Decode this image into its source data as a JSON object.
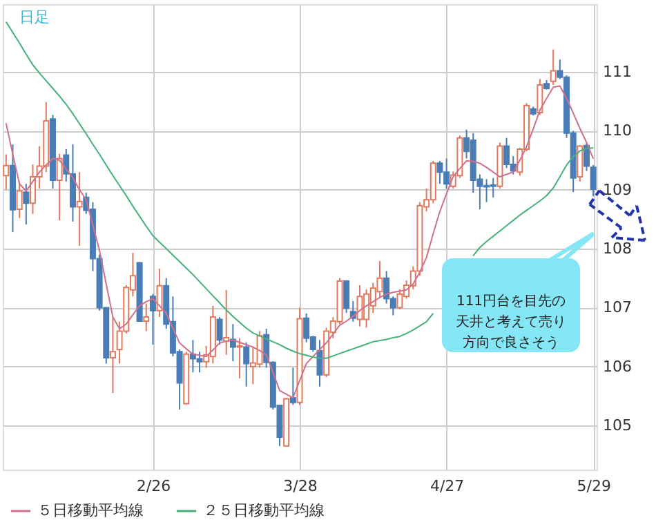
{
  "chart_data": {
    "type": "candlestick",
    "title": "日足",
    "categories": [
      null,
      null,
      null,
      null,
      null,
      null,
      null,
      null,
      null,
      null,
      null,
      null,
      null,
      null,
      null,
      null,
      null,
      null,
      null,
      null,
      null,
      null,
      "2/26",
      null,
      null,
      null,
      null,
      null,
      null,
      null,
      null,
      null,
      null,
      null,
      null,
      null,
      null,
      null,
      null,
      null,
      null,
      null,
      null,
      null,
      "3/28",
      null,
      null,
      null,
      null,
      null,
      null,
      null,
      null,
      null,
      null,
      null,
      null,
      null,
      null,
      null,
      null,
      null,
      null,
      null,
      null,
      null,
      "4/27",
      null,
      null,
      null,
      null,
      null,
      null,
      null,
      null,
      null,
      null,
      null,
      null,
      null,
      null,
      null,
      null,
      null,
      null,
      null,
      null,
      null,
      "5/29"
    ],
    "ohlc": [
      [
        109.24,
        109.6,
        109.0,
        109.41
      ],
      [
        109.41,
        109.77,
        108.28,
        108.66
      ],
      [
        108.67,
        109.14,
        108.52,
        108.98
      ],
      [
        108.96,
        109.1,
        108.41,
        108.77
      ],
      [
        108.77,
        109.43,
        108.59,
        109.22
      ],
      [
        109.22,
        109.74,
        109.02,
        109.4
      ],
      [
        109.4,
        110.49,
        109.3,
        110.17
      ],
      [
        110.2,
        110.27,
        109.02,
        109.16
      ],
      [
        109.16,
        109.61,
        108.48,
        109.53
      ],
      [
        109.59,
        109.69,
        109.14,
        109.27
      ],
      [
        109.27,
        109.77,
        108.46,
        108.71
      ],
      [
        108.71,
        109.3,
        108.05,
        108.8
      ],
      [
        108.87,
        108.95,
        108.59,
        108.65
      ],
      [
        108.67,
        108.79,
        107.62,
        107.83
      ],
      [
        107.83,
        107.9,
        106.95,
        107.0
      ],
      [
        107.0,
        107.0,
        106.05,
        106.15
      ],
      [
        106.15,
        106.84,
        105.55,
        106.25
      ],
      [
        106.29,
        106.76,
        106.05,
        106.6
      ],
      [
        106.6,
        107.38,
        106.56,
        107.34
      ],
      [
        107.3,
        107.93,
        107.19,
        107.54
      ],
      [
        107.76,
        107.77,
        106.76,
        106.77
      ],
      [
        106.77,
        107.07,
        106.6,
        106.84
      ],
      [
        107.19,
        107.23,
        106.37,
        106.95
      ],
      [
        106.95,
        107.66,
        106.84,
        107.37
      ],
      [
        107.37,
        107.5,
        106.64,
        106.72
      ],
      [
        106.76,
        107.19,
        106.17,
        106.23
      ],
      [
        106.25,
        106.29,
        105.27,
        105.72
      ],
      [
        105.37,
        106.25,
        105.35,
        106.21
      ],
      [
        106.21,
        106.45,
        105.9,
        106.13
      ],
      [
        106.13,
        106.25,
        105.9,
        106.08
      ],
      [
        106.08,
        106.35,
        105.98,
        106.2
      ],
      [
        106.17,
        107.03,
        106.05,
        106.84
      ],
      [
        106.8,
        106.84,
        106.37,
        106.45
      ],
      [
        106.43,
        107.3,
        106.2,
        106.49
      ],
      [
        106.46,
        106.72,
        106.09,
        106.33
      ],
      [
        106.33,
        106.48,
        105.8,
        106.35
      ],
      [
        106.33,
        106.41,
        105.66,
        106.05
      ],
      [
        106.0,
        106.33,
        105.7,
        106.06
      ],
      [
        106.04,
        106.6,
        105.98,
        106.52
      ],
      [
        106.54,
        106.64,
        105.98,
        106.07
      ],
      [
        106.07,
        106.09,
        105.27,
        105.31
      ],
      [
        105.34,
        105.35,
        104.65,
        104.8
      ],
      [
        104.65,
        105.47,
        104.65,
        105.45
      ],
      [
        105.47,
        105.98,
        105.35,
        105.39
      ],
      [
        105.39,
        107.0,
        105.35,
        106.81
      ],
      [
        106.82,
        106.9,
        106.41,
        106.48
      ],
      [
        106.5,
        106.52,
        106.25,
        106.29
      ],
      [
        106.27,
        106.45,
        105.66,
        105.86
      ],
      [
        105.86,
        106.66,
        105.82,
        106.6
      ],
      [
        106.58,
        106.84,
        106.48,
        106.77
      ],
      [
        106.76,
        107.5,
        106.72,
        107.45
      ],
      [
        107.45,
        107.46,
        106.91,
        106.99
      ],
      [
        106.93,
        107.11,
        106.76,
        106.82
      ],
      [
        106.8,
        107.38,
        106.68,
        107.19
      ],
      [
        106.8,
        107.31,
        106.66,
        107.23
      ],
      [
        107.03,
        107.42,
        106.91,
        107.33
      ],
      [
        107.27,
        107.79,
        107.17,
        107.5
      ],
      [
        107.5,
        107.62,
        107.07,
        107.15
      ],
      [
        107.15,
        107.19,
        106.87,
        107.0
      ],
      [
        107.0,
        107.31,
        106.97,
        107.23
      ],
      [
        107.19,
        107.46,
        107.15,
        107.38
      ],
      [
        107.37,
        107.7,
        107.31,
        107.62
      ],
      [
        107.62,
        108.79,
        107.54,
        108.73
      ],
      [
        108.71,
        109.02,
        108.63,
        108.83
      ],
      [
        108.83,
        109.49,
        108.77,
        109.45
      ],
      [
        109.45,
        109.49,
        109.1,
        109.3
      ],
      [
        109.3,
        109.53,
        109.02,
        109.1
      ],
      [
        109.06,
        109.31,
        109.02,
        109.25
      ],
      [
        109.24,
        109.92,
        109.2,
        109.88
      ],
      [
        109.88,
        110.02,
        109.53,
        109.65
      ],
      [
        109.84,
        109.96,
        108.95,
        109.16
      ],
      [
        109.18,
        109.26,
        108.67,
        109.06
      ],
      [
        109.07,
        109.18,
        108.79,
        109.05
      ],
      [
        109.08,
        109.2,
        108.87,
        109.06
      ],
      [
        109.06,
        109.8,
        109.02,
        109.74
      ],
      [
        109.74,
        109.88,
        109.37,
        109.43
      ],
      [
        109.43,
        109.57,
        109.26,
        109.32
      ],
      [
        109.3,
        109.71,
        109.24,
        109.69
      ],
      [
        109.69,
        110.47,
        109.65,
        110.43
      ],
      [
        110.37,
        110.41,
        110.26,
        110.29
      ],
      [
        110.31,
        110.88,
        110.27,
        110.78
      ],
      [
        110.8,
        110.86,
        110.7,
        110.72
      ],
      [
        110.84,
        111.38,
        110.78,
        111.02
      ],
      [
        111.02,
        111.21,
        110.88,
        110.91
      ],
      [
        110.91,
        110.94,
        109.88,
        109.96
      ],
      [
        109.96,
        110.0,
        108.96,
        109.2
      ],
      [
        109.22,
        109.76,
        109.14,
        109.74
      ],
      [
        109.75,
        109.79,
        109.32,
        109.4
      ],
      [
        109.38,
        109.42,
        108.89,
        109.01
      ]
    ],
    "series": [
      {
        "name": "５日移動平均線",
        "type": "line",
        "color": "#d0708a",
        "values": [
          110.13,
          109.6,
          109.1,
          108.98,
          109.14,
          109.3,
          109.42,
          109.53,
          109.5,
          109.35,
          109.2,
          109.0,
          108.83,
          108.4,
          107.97,
          107.4,
          106.84,
          106.64,
          106.72,
          106.88,
          107.03,
          107.1,
          107.15,
          107.03,
          106.9,
          106.65,
          106.4,
          106.3,
          106.21,
          106.19,
          106.17,
          106.28,
          106.4,
          106.43,
          106.45,
          106.41,
          106.37,
          106.33,
          106.27,
          106.2,
          105.9,
          105.59,
          105.53,
          105.47,
          105.76,
          106.05,
          106.17,
          106.29,
          106.4,
          106.55,
          106.7,
          106.77,
          106.85,
          106.95,
          107.03,
          107.1,
          107.17,
          107.23,
          107.26,
          107.28,
          107.3,
          107.4,
          107.6,
          107.85,
          108.25,
          108.63,
          108.93,
          109.22,
          109.36,
          109.49,
          109.48,
          109.45,
          109.38,
          109.3,
          109.22,
          109.26,
          109.3,
          109.5,
          109.73,
          110.03,
          110.35,
          110.55,
          110.74,
          110.76,
          110.55,
          110.3,
          110.04,
          109.8,
          109.53
        ]
      },
      {
        "name": "２５日移動平均線",
        "type": "line",
        "color": "#45b07a",
        "values": [
          111.85,
          111.67,
          111.49,
          111.3,
          111.12,
          110.98,
          110.85,
          110.72,
          110.59,
          110.45,
          110.29,
          110.12,
          109.95,
          109.77,
          109.6,
          109.42,
          109.24,
          109.07,
          108.9,
          108.72,
          108.55,
          108.38,
          108.22,
          108.11,
          108.0,
          107.89,
          107.78,
          107.67,
          107.56,
          107.44,
          107.32,
          107.2,
          107.08,
          106.96,
          106.85,
          106.75,
          106.65,
          106.57,
          106.52,
          106.47,
          106.42,
          106.37,
          106.31,
          106.26,
          106.22,
          106.19,
          106.16,
          106.14,
          106.14,
          106.18,
          106.22,
          106.26,
          106.3,
          106.34,
          106.38,
          106.42,
          106.44,
          106.46,
          106.49,
          106.51,
          106.56,
          106.62,
          106.69,
          106.76,
          106.9,
          null,
          null,
          null,
          null,
          null,
          107.88,
          108.02,
          108.12,
          108.21,
          108.3,
          108.39,
          108.48,
          108.57,
          108.65,
          108.73,
          108.81,
          108.9,
          109.03,
          109.22,
          109.42,
          109.56,
          109.66,
          109.7,
          109.71
        ]
      }
    ],
    "ylim": [
      104.25,
      112.15
    ],
    "yticks": [
      105,
      106,
      107,
      108,
      109,
      110,
      111
    ],
    "grid": true,
    "legend": "bottom",
    "marker": "none",
    "line_style": "solid",
    "annotations": [
      "111円台を目先の天井と考えて売り方向で良さそう"
    ]
  }
}
